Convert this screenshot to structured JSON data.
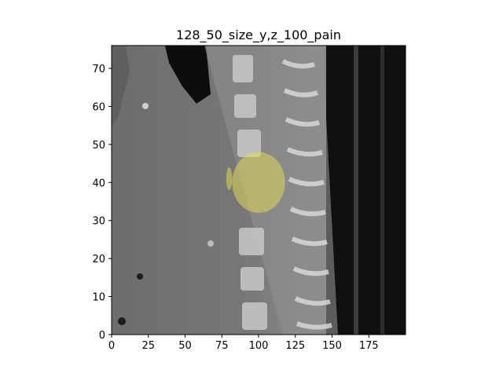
{
  "chart_data": {
    "type": "heatmap",
    "title": "128_50_size_y,z_100_pain",
    "xlabel": "",
    "ylabel": "",
    "xlim": [
      0,
      200
    ],
    "ylim": [
      0,
      76
    ],
    "x_ticks": [
      0,
      25,
      50,
      75,
      100,
      125,
      150,
      175
    ],
    "y_ticks": [
      0,
      10,
      20,
      30,
      40,
      50,
      60,
      70
    ],
    "grid": false,
    "background_image": "sagittal CT slice of thoracic spine, grayscale",
    "overlay": {
      "shape": "roughly circular mask",
      "color": "#e0d85a",
      "opacity": 0.55,
      "center": [
        100,
        40
      ],
      "radius_x": 18,
      "radius_y": 8,
      "satellite_center": [
        80,
        41
      ]
    }
  }
}
